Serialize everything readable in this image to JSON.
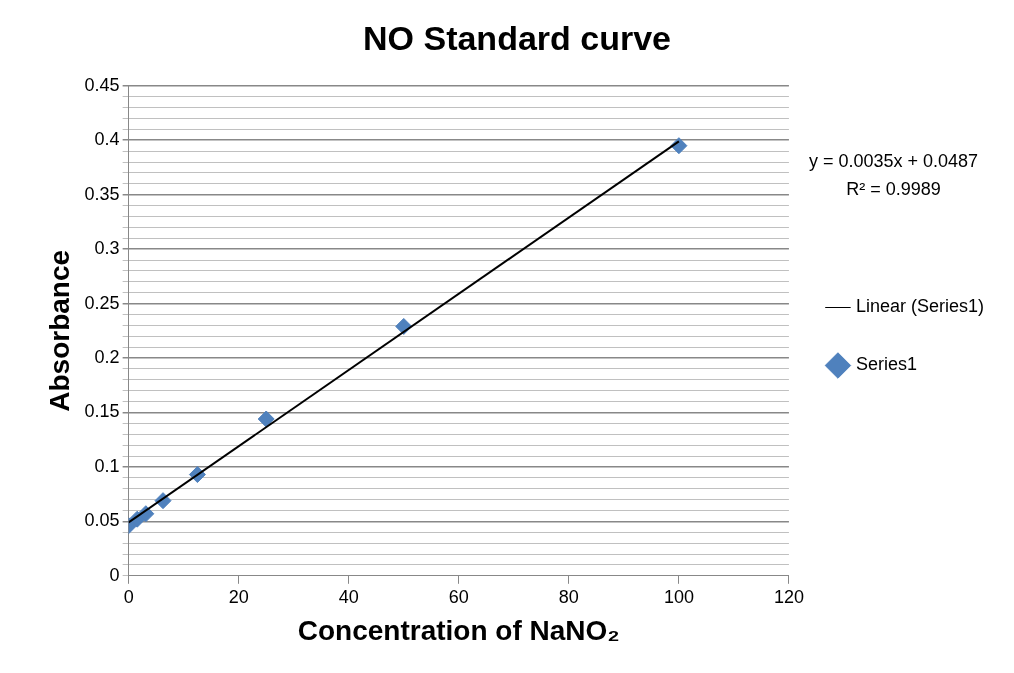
{
  "chart_data": {
    "type": "scatter",
    "title": "NO Standard curve",
    "xlabel": "Concentration of NaNO₂",
    "ylabel": "Absorbance",
    "series": [
      {
        "name": "Series1",
        "type": "scatter",
        "color": "#4f81bd",
        "marker": "diamond",
        "x": [
          0,
          1.5625,
          3.125,
          6.25,
          12.5,
          25,
          50,
          100
        ],
        "values": [
          0.046,
          0.052,
          0.057,
          0.069,
          0.093,
          0.144,
          0.229,
          0.395
        ]
      },
      {
        "name": "Linear (Series1)",
        "type": "line",
        "color": "#000000",
        "marker": "none",
        "line_style": "solid",
        "x": [
          0,
          100
        ],
        "values": [
          0.049,
          0.399
        ]
      }
    ],
    "xlim": [
      0,
      120
    ],
    "xticks": [
      0,
      20,
      40,
      60,
      80,
      100,
      120
    ],
    "ylim": [
      0,
      0.45
    ],
    "yticks": [
      0,
      {
        "value": 0.01,
        "label": null
      },
      {
        "value": 0.02,
        "label": null
      },
      {
        "value": 0.03,
        "label": null
      },
      {
        "value": 0.04,
        "label": null
      },
      0.05,
      {
        "value": 0.06,
        "label": null
      },
      {
        "value": 0.07,
        "label": null
      },
      {
        "value": 0.08,
        "label": null
      },
      {
        "value": 0.09,
        "label": null
      },
      0.1,
      {
        "value": 0.11,
        "label": null
      },
      {
        "value": 0.12,
        "label": null
      },
      {
        "value": 0.13,
        "label": null
      },
      {
        "value": 0.14,
        "label": null
      },
      0.15,
      {
        "value": 0.16,
        "label": null
      },
      {
        "value": 0.17,
        "label": null
      },
      {
        "value": 0.18,
        "label": null
      },
      {
        "value": 0.19,
        "label": null
      },
      0.2,
      {
        "value": 0.21,
        "label": null
      },
      {
        "value": 0.22,
        "label": null
      },
      {
        "value": 0.23,
        "label": null
      },
      {
        "value": 0.24,
        "label": null
      },
      0.25,
      {
        "value": 0.26,
        "label": null
      },
      {
        "value": 0.27,
        "label": null
      },
      {
        "value": 0.28,
        "label": null
      },
      {
        "value": 0.29,
        "label": null
      },
      0.3,
      {
        "value": 0.31,
        "label": null
      },
      {
        "value": 0.32,
        "label": null
      },
      {
        "value": 0.33,
        "label": null
      },
      {
        "value": 0.34,
        "label": null
      },
      0.35,
      {
        "value": 0.36,
        "label": null
      },
      {
        "value": 0.37,
        "label": null
      },
      {
        "value": 0.38,
        "label": null
      },
      {
        "value": 0.39,
        "label": null
      },
      0.4,
      {
        "value": 0.41,
        "label": null
      },
      {
        "value": 0.42,
        "label": null
      },
      {
        "value": 0.43,
        "label": null
      },
      {
        "value": 0.44,
        "label": null
      },
      0.45
    ],
    "grid": "y",
    "legend": "right",
    "annotations": [
      "y = 0.0035x + 0.0487",
      "R² = 0.9989"
    ]
  }
}
